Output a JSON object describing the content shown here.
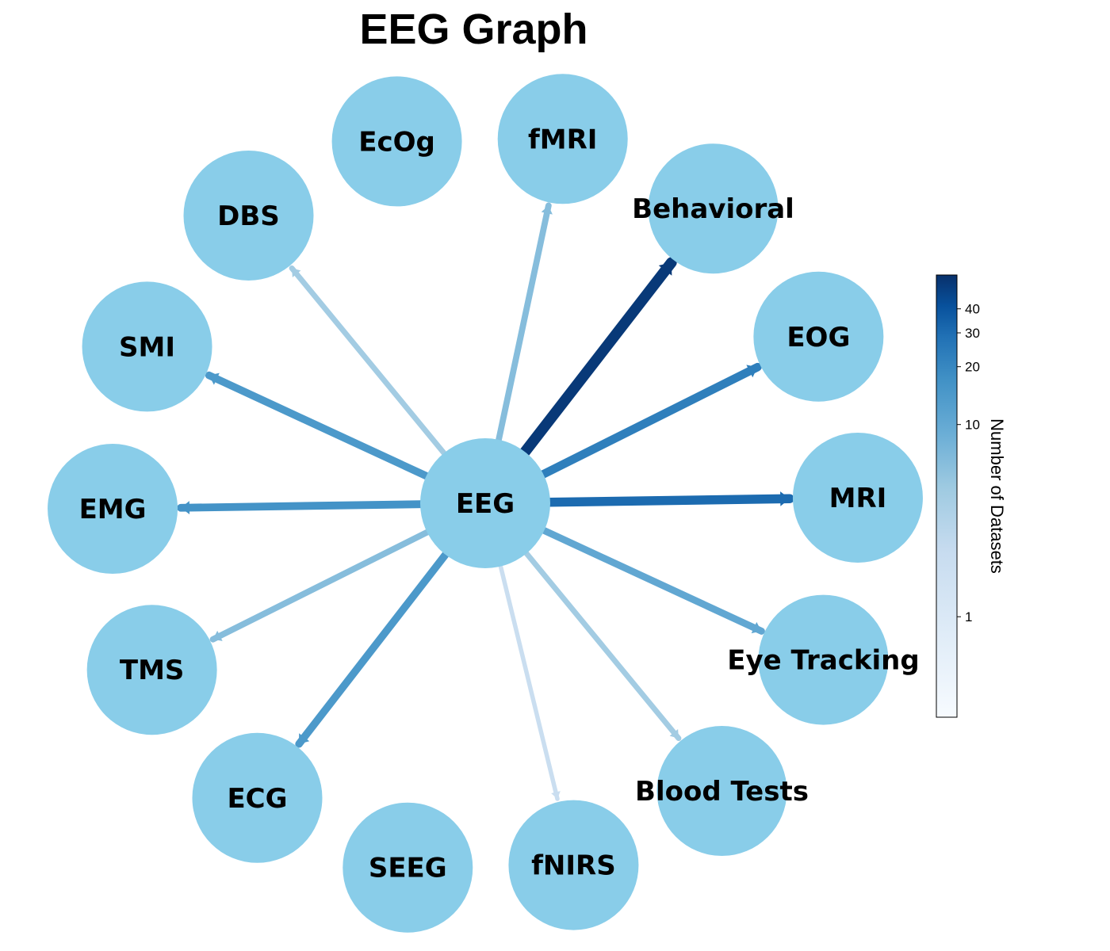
{
  "title": "EEG Graph",
  "center": {
    "name": "EEG"
  },
  "colors": {
    "node_fill": "#89CDE9",
    "colormap_low": "#F7FBFF",
    "colormap_high": "#08306B"
  },
  "nodes": [
    {
      "name": "fMRI",
      "datasets": 3
    },
    {
      "name": "Behavioral",
      "datasets": 50
    },
    {
      "name": "EOG",
      "datasets": 12
    },
    {
      "name": "MRI",
      "datasets": 18
    },
    {
      "name": "Eye Tracking",
      "datasets": 5
    },
    {
      "name": "Blood Tests",
      "datasets": 2
    },
    {
      "name": "fNIRS",
      "datasets": 1
    },
    {
      "name": "SEEG",
      "datasets": 0
    },
    {
      "name": "ECG",
      "datasets": 7
    },
    {
      "name": "TMS",
      "datasets": 3
    },
    {
      "name": "EMG",
      "datasets": 8
    },
    {
      "name": "SMI",
      "datasets": 7
    },
    {
      "name": "DBS",
      "datasets": 2
    },
    {
      "name": "EcOg",
      "datasets": 0
    }
  ],
  "colorbar": {
    "label": "Number of Datasets",
    "scale": "log",
    "range": [
      0.3,
      60
    ],
    "ticks": [
      1,
      10,
      20,
      30,
      40
    ]
  }
}
